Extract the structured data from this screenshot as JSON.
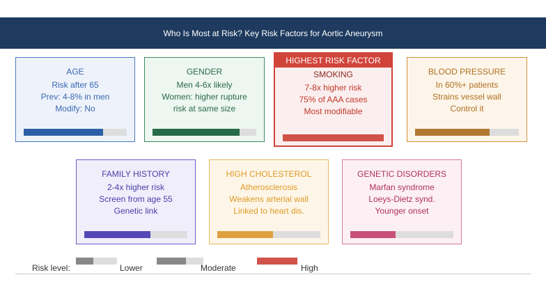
{
  "header": {
    "title": "Who Is Most at Risk? Key Risk Factors for Aortic Aneurysm"
  },
  "cards": [
    {
      "title": "AGE",
      "lines": [
        "Risk after 65",
        "Prev: 4-8% in men",
        "Modify: No"
      ]
    },
    {
      "title": "GENDER",
      "lines": [
        "Men 4-6x likely",
        "Women: higher rupture",
        "risk at same size"
      ]
    },
    {
      "badge": "HIGHEST RISK FACTOR",
      "title": "SMOKING",
      "lines": [
        "7-8x higher risk",
        "75% of AAA cases",
        "Most modifiable"
      ]
    },
    {
      "title": "BLOOD PRESSURE",
      "lines": [
        "In 60%+ patients",
        "Strains vessel wall",
        "Control it"
      ]
    },
    {
      "title": "FAMILY HISTORY",
      "lines": [
        "2-4x higher risk",
        "Screen from age 55",
        "Genetic link"
      ]
    },
    {
      "title": "HIGH CHOLESTEROL",
      "lines": [
        "Atherosclerosis",
        "Weakens arterial wall",
        "Linked to heart dis."
      ]
    },
    {
      "title": "GENETIC DISORDERS",
      "lines": [
        "Marfan syndrome",
        "Loeys-Dietz synd.",
        "Younger onset"
      ]
    }
  ],
  "legend": {
    "label": "Risk level:",
    "items": [
      "Lower",
      "Moderate",
      "High"
    ]
  }
}
